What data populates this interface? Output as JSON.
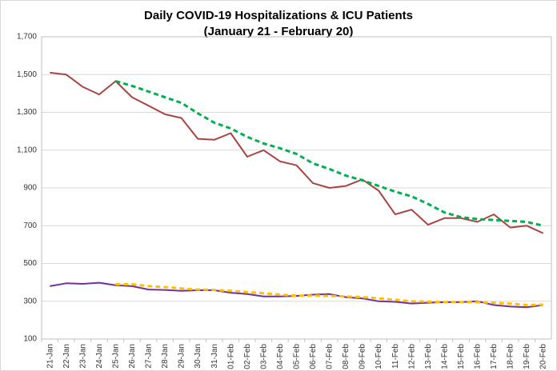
{
  "chart_data": {
    "type": "line",
    "title": "Daily COVID-19 Hospitalizations & ICU Patients",
    "subtitle": "(January 21 - February 20)",
    "categories": [
      "21-Jan",
      "22-Jan",
      "23-Jan",
      "24-Jan",
      "25-Jan",
      "26-Jan",
      "27-Jan",
      "28-Jan",
      "29-Jan",
      "30-Jan",
      "31-Jan",
      "01-Feb",
      "02-Feb",
      "03-Feb",
      "04-Feb",
      "05-Feb",
      "06-Feb",
      "07-Feb",
      "08-Feb",
      "09-Feb",
      "10-Feb",
      "11-Feb",
      "12-Feb",
      "13-Feb",
      "14-Feb",
      "15-Feb",
      "16-Feb",
      "17-Feb",
      "18-Feb",
      "19-Feb",
      "20-Feb"
    ],
    "series": [
      {
        "color": "#a94442",
        "dashed": false,
        "values": [
          1510,
          1500,
          1435,
          1395,
          1465,
          1380,
          1335,
          1290,
          1270,
          1160,
          1155,
          1190,
          1065,
          1100,
          1040,
          1020,
          925,
          900,
          910,
          945,
          885,
          760,
          785,
          705,
          740,
          740,
          720,
          760,
          690,
          700,
          660
        ]
      },
      {
        "color": "#00b050",
        "dashed": true,
        "values": [
          null,
          null,
          null,
          null,
          1465,
          1440,
          1410,
          1380,
          1350,
          1295,
          1245,
          1215,
          1170,
          1135,
          1110,
          1080,
          1030,
          1000,
          965,
          940,
          910,
          880,
          855,
          815,
          770,
          745,
          735,
          730,
          725,
          720,
          700
        ]
      },
      {
        "color": "#7030a0",
        "dashed": false,
        "values": [
          380,
          395,
          392,
          398,
          385,
          380,
          362,
          360,
          355,
          358,
          358,
          345,
          338,
          325,
          325,
          328,
          335,
          338,
          322,
          315,
          300,
          297,
          288,
          292,
          295,
          295,
          300,
          280,
          272,
          268,
          280
        ]
      },
      {
        "color": "#ffc000",
        "dashed": true,
        "values": [
          null,
          null,
          null,
          null,
          390,
          390,
          380,
          375,
          368,
          362,
          360,
          355,
          348,
          342,
          335,
          330,
          330,
          328,
          325,
          322,
          315,
          308,
          300,
          298,
          295,
          295,
          295,
          292,
          287,
          280,
          282
        ]
      }
    ],
    "ylim": [
      100,
      1700
    ],
    "yticks": [
      100,
      300,
      500,
      700,
      900,
      {
        "value": 1100,
        "label": "1,100"
      },
      {
        "value": 1300,
        "label": "1,300"
      },
      {
        "value": 1500,
        "label": "1,500"
      },
      {
        "value": 1700,
        "label": "1,700"
      }
    ],
    "grid": true
  }
}
